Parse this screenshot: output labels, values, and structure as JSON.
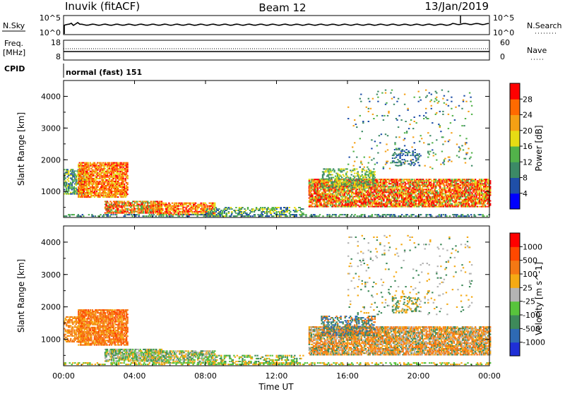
{
  "header": {
    "station": "Inuvik (fitACF)",
    "beam": "Beam 12",
    "date": "13/Jan/2019"
  },
  "strip_nsky": {
    "left_label": "N.Sky",
    "left_ticks": [
      "10^5",
      "10^0"
    ],
    "right_label": "N.Search",
    "right_ticks": [
      "10^5",
      "10^0"
    ]
  },
  "strip_freq": {
    "left_label_1": "Freq.",
    "left_label_2": "[MHz]",
    "left_ticks": [
      "18",
      "8"
    ],
    "right_label": "Nave",
    "right_ticks": [
      "60",
      "0"
    ]
  },
  "strip_cpid": {
    "label": "CPID",
    "value": "normal (fast) 151"
  },
  "colors": {
    "power_scale": [
      "#0000ff",
      "#1f4fa8",
      "#3c8a66",
      "#52b24a",
      "#e6dc14",
      "#f5a014",
      "#ff6a00",
      "#ff0000"
    ],
    "velocity_scale": [
      "#1f2fd6",
      "#2e6ab3",
      "#3e8a5a",
      "#58c43c",
      "#b4b4b4",
      "#f5aa14",
      "#f57814",
      "#ff4800",
      "#ff0000"
    ]
  },
  "chart_data": [
    {
      "type": "heatmap",
      "title": "",
      "xlabel": "Time UT",
      "ylabel": "Slant Range [km]",
      "x_ticks": [
        "00:00",
        "04:00",
        "08:00",
        "12:00",
        "16:00",
        "20:00",
        "00:00"
      ],
      "y_ticks": [
        "1000",
        "2000",
        "3000",
        "4000"
      ],
      "ylim": [
        180,
        4500
      ],
      "xlim": [
        0,
        24
      ],
      "colorbar": {
        "label": "Power [dB]",
        "ticks": [
          "4",
          "8",
          "12",
          "16",
          "20",
          "24",
          "28"
        ],
        "range": [
          0,
          32
        ]
      }
    },
    {
      "type": "heatmap",
      "title": "",
      "xlabel": "Time UT",
      "ylabel": "Slant Range [km]",
      "x_ticks": [
        "00:00",
        "04:00",
        "08:00",
        "12:00",
        "16:00",
        "20:00",
        "00:00"
      ],
      "y_ticks": [
        "1000",
        "2000",
        "3000",
        "4000"
      ],
      "ylim": [
        180,
        4500
      ],
      "xlim": [
        0,
        24
      ],
      "colorbar": {
        "label": "Velocity [m s^-1]",
        "ticks": [
          "1000",
          "500",
          "100",
          "25",
          "-25",
          "-100",
          "-500",
          "-1000"
        ]
      }
    }
  ]
}
